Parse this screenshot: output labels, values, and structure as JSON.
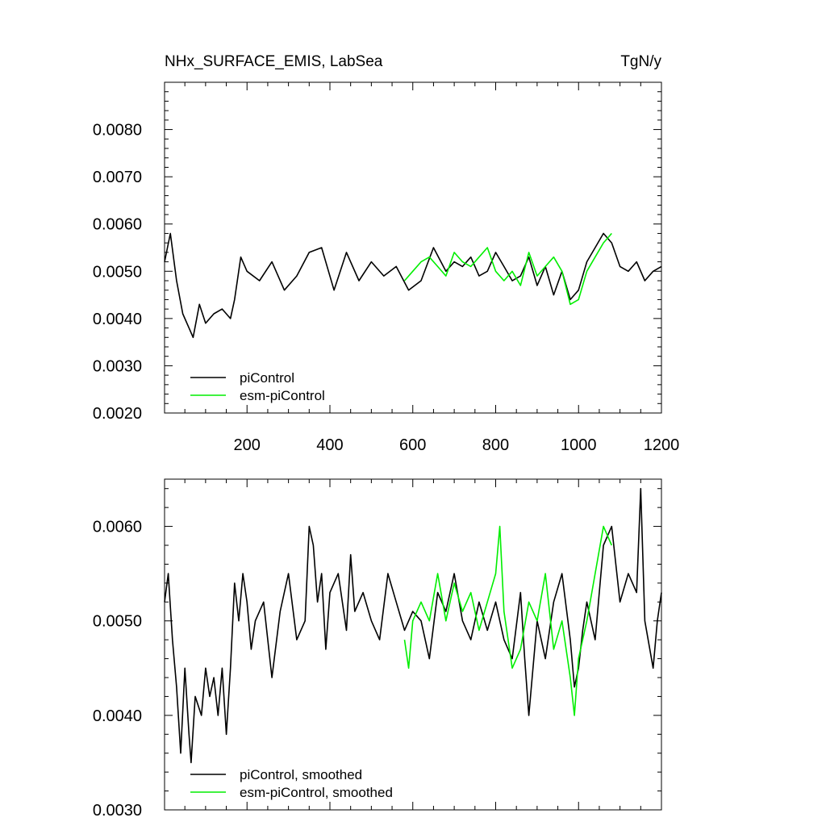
{
  "title_left": "NHx_SURFACE_EMIS, LabSea",
  "title_right": "TgN/y",
  "colors": {
    "piControl": "#000000",
    "esm_piControl": "#00ee00"
  },
  "chart_data": [
    {
      "type": "line",
      "title": "NHx_SURFACE_EMIS, LabSea",
      "units": "TgN/y",
      "xlim": [
        1,
        1200
      ],
      "ylim": [
        0.002,
        0.009
      ],
      "x_ticks": [
        200,
        400,
        600,
        800,
        1000,
        1200
      ],
      "x_tick_labels": [
        "200",
        "400",
        "600",
        "800",
        "1000",
        "1200"
      ],
      "y_ticks": [
        0.002,
        0.003,
        0.004,
        0.005,
        0.006,
        0.007,
        0.008
      ],
      "y_tick_labels": [
        "0.0020",
        "0.0030",
        "0.0040",
        "0.0050",
        "0.0060",
        "0.0070",
        "0.0080"
      ],
      "legend": [
        "piControl",
        "esm-piControl"
      ],
      "legend_position": "bottom-left",
      "series": [
        {
          "name": "piControl",
          "color": "#000000",
          "x": [
            1,
            15,
            30,
            45,
            60,
            70,
            85,
            100,
            120,
            140,
            160,
            170,
            185,
            200,
            230,
            260,
            290,
            320,
            350,
            380,
            410,
            440,
            470,
            500,
            530,
            560,
            590,
            620,
            650,
            680,
            700,
            720,
            740,
            760,
            780,
            800,
            820,
            840,
            860,
            880,
            900,
            920,
            940,
            960,
            980,
            1000,
            1020,
            1040,
            1060,
            1080,
            1100,
            1120,
            1140,
            1160,
            1180,
            1200
          ],
          "y": [
            0.0052,
            0.0058,
            0.0048,
            0.0041,
            0.0038,
            0.0036,
            0.0043,
            0.0039,
            0.0041,
            0.0042,
            0.004,
            0.0044,
            0.0053,
            0.005,
            0.0048,
            0.0052,
            0.0046,
            0.0049,
            0.0054,
            0.0055,
            0.0046,
            0.0054,
            0.0048,
            0.0052,
            0.0049,
            0.0051,
            0.0046,
            0.0048,
            0.0055,
            0.005,
            0.0052,
            0.0051,
            0.0053,
            0.0049,
            0.005,
            0.0054,
            0.0051,
            0.0048,
            0.0049,
            0.0053,
            0.0047,
            0.0051,
            0.0045,
            0.005,
            0.0044,
            0.0046,
            0.0052,
            0.0055,
            0.0058,
            0.0056,
            0.0051,
            0.005,
            0.0052,
            0.0048,
            0.005,
            0.0051
          ]
        },
        {
          "name": "esm-piControl",
          "color": "#00ee00",
          "x": [
            580,
            600,
            620,
            640,
            660,
            680,
            700,
            720,
            740,
            760,
            780,
            800,
            820,
            840,
            860,
            880,
            900,
            920,
            940,
            960,
            980,
            1000,
            1020,
            1040,
            1060,
            1080
          ],
          "y": [
            0.0048,
            0.005,
            0.0052,
            0.0053,
            0.0051,
            0.0049,
            0.0054,
            0.0052,
            0.0051,
            0.0053,
            0.0055,
            0.005,
            0.0048,
            0.005,
            0.0047,
            0.0054,
            0.0049,
            0.0051,
            0.0053,
            0.005,
            0.0043,
            0.0044,
            0.005,
            0.0053,
            0.0056,
            0.0058
          ]
        }
      ]
    },
    {
      "type": "line",
      "title": "",
      "xlim": [
        1,
        1200
      ],
      "ylim": [
        0.003,
        0.0065
      ],
      "x_ticks": [
        200,
        400,
        600,
        800,
        1000,
        1200
      ],
      "x_tick_labels": [],
      "y_ticks": [
        0.003,
        0.004,
        0.005,
        0.006
      ],
      "y_tick_labels": [
        "0.0030",
        "0.0040",
        "0.0050",
        "0.0060"
      ],
      "legend": [
        "piControl, smoothed",
        "esm-piControl, smoothed"
      ],
      "legend_position": "bottom-left",
      "series": [
        {
          "name": "piControl, smoothed",
          "color": "#000000",
          "x": [
            1,
            10,
            20,
            30,
            40,
            50,
            60,
            65,
            75,
            90,
            100,
            110,
            120,
            130,
            140,
            150,
            160,
            170,
            180,
            190,
            200,
            210,
            220,
            240,
            260,
            280,
            300,
            320,
            340,
            350,
            360,
            370,
            380,
            390,
            400,
            420,
            440,
            450,
            460,
            480,
            500,
            520,
            540,
            560,
            580,
            600,
            620,
            640,
            660,
            680,
            700,
            720,
            740,
            760,
            780,
            800,
            820,
            840,
            860,
            870,
            880,
            900,
            920,
            940,
            960,
            980,
            990,
            1000,
            1010,
            1020,
            1040,
            1060,
            1080,
            1100,
            1120,
            1140,
            1150,
            1160,
            1180,
            1190,
            1200
          ],
          "y": [
            0.0052,
            0.0055,
            0.0048,
            0.0043,
            0.0036,
            0.0045,
            0.0038,
            0.0035,
            0.0042,
            0.004,
            0.0045,
            0.0042,
            0.0044,
            0.004,
            0.0045,
            0.0038,
            0.0045,
            0.0054,
            0.005,
            0.0055,
            0.0052,
            0.0047,
            0.005,
            0.0052,
            0.0044,
            0.0051,
            0.0055,
            0.0048,
            0.005,
            0.006,
            0.0058,
            0.0052,
            0.0055,
            0.0047,
            0.0053,
            0.0055,
            0.0049,
            0.0057,
            0.0051,
            0.0053,
            0.005,
            0.0048,
            0.0055,
            0.0052,
            0.0049,
            0.0051,
            0.005,
            0.0046,
            0.0053,
            0.0051,
            0.0055,
            0.005,
            0.0048,
            0.0052,
            0.0049,
            0.0052,
            0.0048,
            0.0046,
            0.0053,
            0.0046,
            0.004,
            0.005,
            0.0046,
            0.0052,
            0.0055,
            0.0048,
            0.0043,
            0.0045,
            0.0049,
            0.0052,
            0.0048,
            0.0058,
            0.006,
            0.0052,
            0.0055,
            0.0053,
            0.0064,
            0.005,
            0.0045,
            0.005,
            0.0053
          ]
        },
        {
          "name": "esm-piControl, smoothed",
          "color": "#00ee00",
          "x": [
            580,
            590,
            600,
            620,
            640,
            660,
            680,
            700,
            720,
            740,
            760,
            780,
            800,
            810,
            820,
            840,
            860,
            880,
            900,
            920,
            940,
            960,
            980,
            990,
            1000,
            1020,
            1040,
            1060,
            1080
          ],
          "y": [
            0.0048,
            0.0045,
            0.005,
            0.0052,
            0.005,
            0.0055,
            0.005,
            0.0054,
            0.0051,
            0.0053,
            0.0049,
            0.0052,
            0.0055,
            0.006,
            0.0051,
            0.0045,
            0.0047,
            0.0052,
            0.005,
            0.0055,
            0.0047,
            0.005,
            0.0044,
            0.004,
            0.0046,
            0.005,
            0.0055,
            0.006,
            0.0058
          ]
        }
      ]
    }
  ]
}
